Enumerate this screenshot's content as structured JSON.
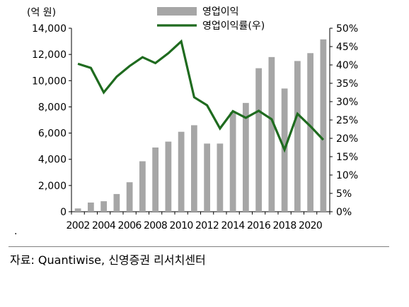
{
  "chart_data": {
    "type": "bar+line",
    "x": [
      "2002",
      "2003",
      "2004",
      "2005",
      "2006",
      "2007",
      "2008",
      "2009",
      "2010",
      "2011",
      "2012",
      "2013",
      "2014",
      "2015",
      "2016",
      "2017",
      "2018",
      "2019",
      "2020",
      "2021"
    ],
    "x_tick_labels": [
      "2002",
      "2004",
      "2006",
      "2008",
      "2010",
      "2012",
      "2014",
      "2016",
      "2018",
      "2020"
    ],
    "series": [
      {
        "name": "영업이익",
        "type": "bar",
        "axis": "left",
        "color": "#a6a6a6",
        "values": [
          250,
          700,
          800,
          1350,
          2250,
          3850,
          4900,
          5350,
          6100,
          6600,
          5200,
          5200,
          7600,
          8300,
          10950,
          11800,
          9400,
          11500,
          12100,
          13150
        ]
      },
      {
        "name": "영업이익률(우)",
        "type": "line",
        "axis": "right",
        "color": "#1f6b1f",
        "values": [
          40.3,
          39.2,
          32.5,
          36.8,
          39.7,
          42.1,
          40.5,
          43.2,
          46.4,
          31.2,
          29.0,
          22.7,
          27.4,
          25.6,
          27.5,
          25.2,
          16.9,
          26.7,
          23.3,
          19.6
        ]
      }
    ],
    "y_left": {
      "label": "(억 원)",
      "lim": [
        0,
        14000
      ],
      "ticks": [
        "0",
        "2,000",
        "4,000",
        "6,000",
        "8,000",
        "10,000",
        "12,000",
        "14,000"
      ]
    },
    "y_right": {
      "lim": [
        0,
        50
      ],
      "ticks": [
        "0%",
        "5%",
        "10%",
        "15%",
        "20%",
        "25%",
        "30%",
        "35%",
        "40%",
        "45%",
        "50%"
      ]
    },
    "legend_position": "top-center",
    "grid": false
  },
  "dot": ".",
  "source": "자료: Quantiwise, 신영증권 리서치센터"
}
